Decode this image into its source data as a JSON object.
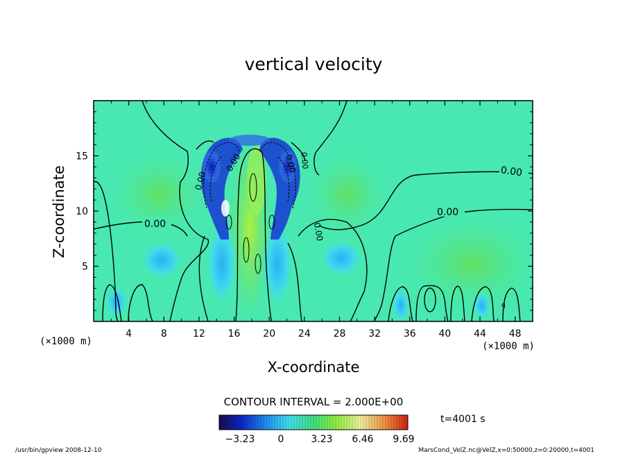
{
  "chart_data": {
    "type": "heatmap",
    "title": "vertical velocity",
    "xlabel": "X-coordinate",
    "ylabel": "Z-coordinate",
    "x_unit": "(×1000 m)",
    "y_unit": "(×1000 m)",
    "xlim": [
      0,
      50
    ],
    "ylim": [
      0,
      20
    ],
    "x_ticks": [
      "4",
      "8",
      "12",
      "16",
      "20",
      "24",
      "28",
      "32",
      "36",
      "40",
      "44",
      "48"
    ],
    "y_ticks": [
      "5",
      "10",
      "15"
    ],
    "contour_interval_label": "CONTOUR INTERVAL = 2.000E+00",
    "contour_labels": [
      "0.00",
      "0.00",
      "0.00",
      "0.00",
      "0.00",
      "0.00",
      "0.00",
      "0.00"
    ],
    "colorbar": {
      "range": [
        -3.23,
        9.69
      ],
      "tick_labels": [
        "-3.23",
        "0",
        "3.23",
        "6.46",
        "9.69"
      ],
      "colors": [
        "#1a0a50",
        "#0a28c8",
        "#2090f0",
        "#40e0f0",
        "#40e080",
        "#90f040",
        "#f0f0a0",
        "#f09040",
        "#d02010"
      ]
    },
    "time_label": "t=4001 s",
    "footer_left": "/usr/bin/gpview   2008-12-10",
    "footer_right": "MarsCond_VelZ.nc@VelZ,x=0:50000,z=0:20000,t=4001"
  }
}
